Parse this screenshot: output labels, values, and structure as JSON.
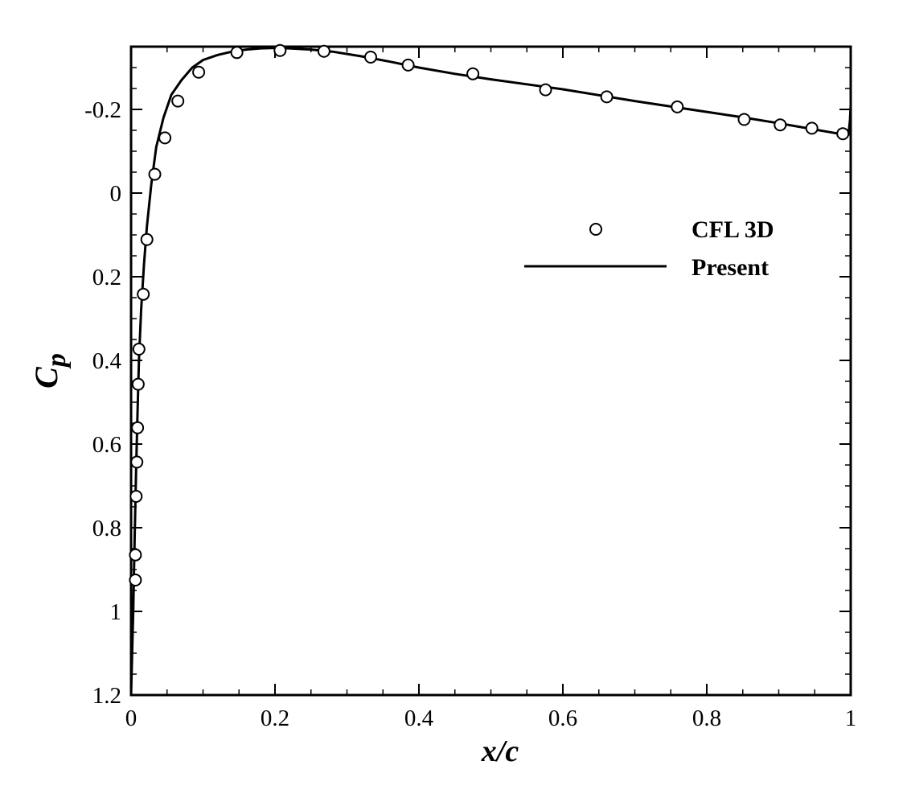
{
  "chart_data": {
    "type": "line",
    "xlabel": "x/c",
    "ylabel_main": "C",
    "ylabel_sub": "p",
    "xlim": [
      0,
      1
    ],
    "ylim": [
      1.2,
      -0.35
    ],
    "y_inverted": true,
    "grid": false,
    "legend_placement": "upper-right",
    "x_ticks": [
      {
        "value": 0,
        "label": "0"
      },
      {
        "value": 0.2,
        "label": "0.2"
      },
      {
        "value": 0.4,
        "label": "0.4"
      },
      {
        "value": 0.6,
        "label": "0.6"
      },
      {
        "value": 0.8,
        "label": "0.8"
      },
      {
        "value": 1,
        "label": "1"
      }
    ],
    "y_ticks": [
      {
        "value": -0.2,
        "label": "-0.2"
      },
      {
        "value": 0,
        "label": "0"
      },
      {
        "value": 0.2,
        "label": "0.2"
      },
      {
        "value": 0.4,
        "label": "0.4"
      },
      {
        "value": 0.6,
        "label": "0.6"
      },
      {
        "value": 0.8,
        "label": "0.8"
      },
      {
        "value": 1,
        "label": "1"
      },
      {
        "value": 1.2,
        "label": "1.2"
      }
    ],
    "series": [
      {
        "name": "CFL 3D",
        "style": "markers",
        "marker": "open-circle",
        "color": "#000000",
        "x": [
          0.006,
          0.006,
          0.007,
          0.008,
          0.009,
          0.01,
          0.011,
          0.017,
          0.022,
          0.033,
          0.047,
          0.065,
          0.094,
          0.147,
          0.207,
          0.268,
          0.333,
          0.385,
          0.475,
          0.576,
          0.661,
          0.759,
          0.852,
          0.902,
          0.946,
          0.989
        ],
        "y": [
          0.925,
          0.865,
          0.725,
          0.643,
          0.561,
          0.457,
          0.373,
          0.242,
          0.111,
          -0.045,
          -0.132,
          -0.22,
          -0.289,
          -0.336,
          -0.341,
          -0.339,
          -0.325,
          -0.306,
          -0.285,
          -0.247,
          -0.23,
          -0.206,
          -0.176,
          -0.163,
          -0.155,
          -0.142
        ]
      },
      {
        "name": "Present",
        "style": "line",
        "color": "#000000",
        "x": [
          0.0,
          0.003,
          0.005,
          0.007,
          0.009,
          0.011,
          0.014,
          0.018,
          0.022,
          0.028,
          0.035,
          0.045,
          0.056,
          0.07,
          0.085,
          0.1,
          0.12,
          0.14,
          0.16,
          0.18,
          0.2,
          0.22,
          0.25,
          0.28,
          0.32,
          0.36,
          0.4,
          0.45,
          0.5,
          0.55,
          0.6,
          0.65,
          0.7,
          0.75,
          0.8,
          0.85,
          0.9,
          0.95,
          0.99,
          0.997,
          0.999,
          1.0
        ],
        "y": [
          1.2,
          1.0,
          0.82,
          0.66,
          0.52,
          0.4,
          0.28,
          0.17,
          0.08,
          -0.02,
          -0.11,
          -0.18,
          -0.235,
          -0.27,
          -0.3,
          -0.318,
          -0.33,
          -0.338,
          -0.343,
          -0.346,
          -0.347,
          -0.346,
          -0.343,
          -0.338,
          -0.327,
          -0.314,
          -0.3,
          -0.285,
          -0.272,
          -0.26,
          -0.248,
          -0.234,
          -0.22,
          -0.207,
          -0.194,
          -0.181,
          -0.167,
          -0.152,
          -0.14,
          -0.14,
          -0.175,
          -0.21
        ]
      }
    ]
  }
}
